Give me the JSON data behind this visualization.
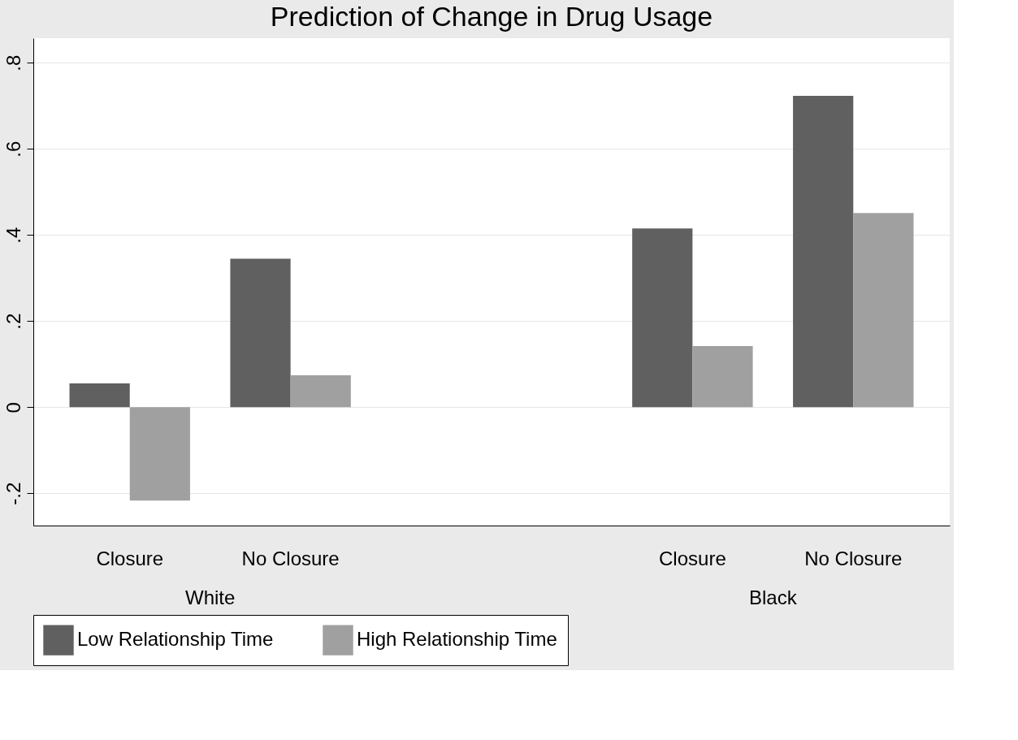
{
  "chart_data": {
    "type": "bar",
    "title": "Prediction of Change in Drug Usage",
    "categories": [
      "Closure",
      "No Closure",
      "Closure",
      "No Closure"
    ],
    "annotations": [
      "White",
      "Black"
    ],
    "series": [
      {
        "name": "Low Relationship Time",
        "color": "#606060",
        "values": [
          0.055,
          0.345,
          0.415,
          0.723
        ]
      },
      {
        "name": "High Relationship Time",
        "color": "#a0a0a0",
        "values": [
          -0.217,
          0.074,
          0.142,
          0.451
        ]
      }
    ],
    "ylim": [
      -0.275,
      0.857
    ],
    "yticks": [
      {
        "value": -0.2,
        "label": "-.2"
      },
      {
        "value": 0,
        "label": "0"
      },
      {
        "value": 0.2,
        "label": ".2"
      },
      {
        "value": 0.4,
        "label": ".4"
      },
      {
        "value": 0.6,
        "label": ".6"
      },
      {
        "value": 0.8,
        "label": ".8"
      }
    ],
    "grid": "y",
    "legend": "bottom"
  }
}
